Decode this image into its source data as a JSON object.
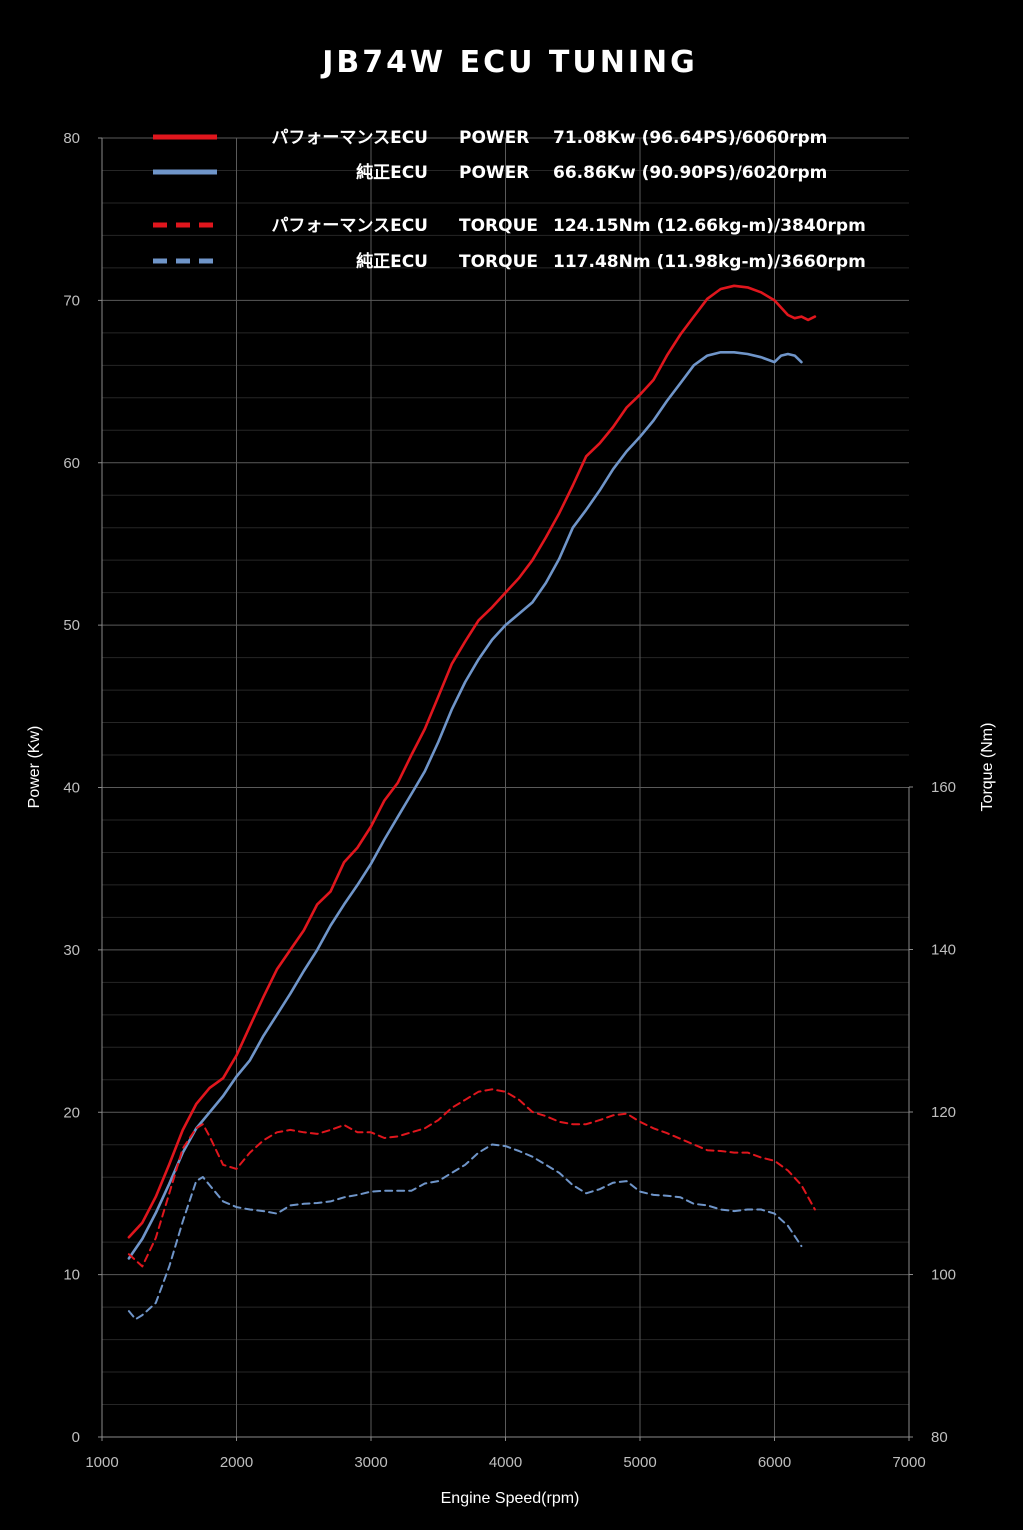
{
  "chart_data": {
    "type": "line",
    "title": "JB74W ECU TUNING",
    "xlabel": "Engine Speed(rpm)",
    "ylabel": "Power (Kw)",
    "y2label": "Torque (Nm)",
    "xlim": [
      1000,
      7000
    ],
    "ylim": [
      0,
      80
    ],
    "y2lim": [
      80,
      160
    ],
    "xticks": [
      "1000",
      "2000",
      "3000",
      "4000",
      "5000",
      "6000",
      "7000"
    ],
    "yticks": [
      "0",
      "10",
      "20",
      "30",
      "40",
      "50",
      "60",
      "70",
      "80"
    ],
    "y2ticks": [
      "80",
      "100",
      "120",
      "140",
      "160"
    ],
    "grid": true,
    "legend_position": "top",
    "series": [
      {
        "name": "パフォーマンスECU",
        "legend_metric": "POWER",
        "legend_value": "71.08Kw (96.64PS)/6060rpm",
        "axis": "left",
        "style": "solid",
        "color": "#e0161d",
        "x": [
          1200,
          1300,
          1400,
          1500,
          1600,
          1700,
          1800,
          1900,
          2000,
          2100,
          2200,
          2300,
          2400,
          2500,
          2600,
          2700,
          2800,
          2900,
          3000,
          3100,
          3200,
          3300,
          3400,
          3500,
          3600,
          3700,
          3800,
          3900,
          4000,
          4100,
          4200,
          4300,
          4400,
          4500,
          4600,
          4700,
          4800,
          4900,
          5000,
          5100,
          5200,
          5300,
          5400,
          5500,
          5600,
          5700,
          5800,
          5900,
          6000,
          6100,
          6150,
          6200,
          6250,
          6300
        ],
        "y": [
          12.3,
          13.2,
          14.8,
          16.8,
          18.9,
          20.5,
          21.5,
          22.1,
          23.5,
          25.3,
          27.1,
          28.8,
          30.0,
          31.2,
          32.8,
          33.6,
          35.4,
          36.3,
          37.6,
          39.2,
          40.3,
          42.0,
          43.6,
          45.6,
          47.6,
          49.0,
          50.3,
          51.1,
          52.0,
          52.9,
          54.0,
          55.4,
          56.9,
          58.6,
          60.4,
          61.2,
          62.2,
          63.4,
          64.2,
          65.1,
          66.6,
          67.9,
          69.0,
          70.1,
          70.7,
          70.9,
          70.8,
          70.5,
          70.0,
          69.1,
          68.9,
          69.0,
          68.8,
          69.0
        ],
        "x_note": ""
      },
      {
        "name": "純正ECU",
        "legend_metric": "POWER",
        "legend_value": "66.86Kw (90.90PS)/6020rpm",
        "axis": "left",
        "style": "solid",
        "color": "#6f95c9",
        "x": [
          1200,
          1300,
          1400,
          1500,
          1600,
          1700,
          1800,
          1900,
          2000,
          2100,
          2200,
          2300,
          2400,
          2500,
          2600,
          2700,
          2800,
          2900,
          3000,
          3100,
          3200,
          3300,
          3400,
          3500,
          3600,
          3700,
          3800,
          3900,
          4000,
          4100,
          4200,
          4300,
          4400,
          4500,
          4600,
          4700,
          4800,
          4900,
          5000,
          5100,
          5200,
          5300,
          5400,
          5500,
          5600,
          5700,
          5800,
          5900,
          6000,
          6050,
          6100,
          6150,
          6200
        ],
        "y": [
          11.0,
          12.2,
          13.8,
          15.6,
          17.5,
          19.0,
          20.0,
          21.0,
          22.2,
          23.2,
          24.7,
          26.0,
          27.3,
          28.7,
          30.0,
          31.5,
          32.8,
          34.0,
          35.3,
          36.8,
          38.2,
          39.6,
          41.0,
          42.8,
          44.8,
          46.5,
          47.9,
          49.1,
          50.0,
          50.7,
          51.4,
          52.6,
          54.1,
          56.0,
          57.1,
          58.3,
          59.6,
          60.7,
          61.6,
          62.6,
          63.8,
          64.9,
          66.0,
          66.6,
          66.8,
          66.8,
          66.7,
          66.5,
          66.2,
          66.6,
          66.7,
          66.6,
          66.2
        ],
        "x_note": ""
      },
      {
        "name": "パフォーマンスECU",
        "legend_metric": "TORQUE",
        "legend_value": "124.15Nm (12.66kg-m)/3840rpm",
        "axis": "right",
        "style": "dashed",
        "color": "#e0161d",
        "x": [
          1200,
          1300,
          1400,
          1500,
          1600,
          1700,
          1750,
          1800,
          1900,
          2000,
          2100,
          2200,
          2300,
          2400,
          2500,
          2600,
          2700,
          2800,
          2900,
          3000,
          3100,
          3200,
          3300,
          3400,
          3500,
          3600,
          3700,
          3800,
          3900,
          4000,
          4100,
          4200,
          4300,
          4400,
          4500,
          4600,
          4700,
          4800,
          4900,
          5000,
          5100,
          5200,
          5300,
          5400,
          5500,
          5600,
          5700,
          5800,
          5900,
          6000,
          6100,
          6200,
          6300
        ],
        "y": [
          102.5,
          101.0,
          104.5,
          110.0,
          115.5,
          118.0,
          118.5,
          117.0,
          113.5,
          113.0,
          115.0,
          116.5,
          117.5,
          117.8,
          117.5,
          117.3,
          117.8,
          118.4,
          117.5,
          117.5,
          116.8,
          117.0,
          117.5,
          118.0,
          119.0,
          120.5,
          121.5,
          122.5,
          122.8,
          122.5,
          121.5,
          120.0,
          119.5,
          118.8,
          118.5,
          118.5,
          119.0,
          119.6,
          119.8,
          118.8,
          118.0,
          117.4,
          116.7,
          116.0,
          115.3,
          115.2,
          115.0,
          115.0,
          114.4,
          114.0,
          112.8,
          111.0,
          108.0
        ],
        "x_note": ""
      },
      {
        "name": "純正ECU",
        "legend_metric": "TORQUE",
        "legend_value": "117.48Nm (11.98kg-m)/3660rpm",
        "axis": "right",
        "style": "dashed",
        "color": "#6f95c9",
        "x": [
          1200,
          1250,
          1300,
          1400,
          1500,
          1600,
          1700,
          1750,
          1800,
          1900,
          2000,
          2100,
          2200,
          2300,
          2400,
          2500,
          2600,
          2700,
          2800,
          2900,
          3000,
          3100,
          3200,
          3300,
          3400,
          3500,
          3600,
          3700,
          3800,
          3900,
          4000,
          4100,
          4200,
          4300,
          4400,
          4500,
          4600,
          4700,
          4800,
          4900,
          5000,
          5100,
          5200,
          5300,
          5400,
          5500,
          5600,
          5700,
          5800,
          5900,
          6000,
          6100,
          6200
        ],
        "y": [
          95.5,
          94.5,
          95.0,
          96.5,
          101.0,
          106.5,
          111.5,
          112.0,
          111.0,
          109.0,
          108.3,
          108.0,
          107.8,
          107.5,
          108.5,
          108.7,
          108.8,
          109.0,
          109.5,
          109.8,
          110.2,
          110.3,
          110.3,
          110.3,
          111.2,
          111.5,
          112.5,
          113.5,
          115.0,
          116.0,
          115.8,
          115.2,
          114.5,
          113.5,
          112.5,
          111.0,
          110.0,
          110.5,
          111.3,
          111.5,
          110.2,
          109.8,
          109.7,
          109.5,
          108.7,
          108.5,
          108.0,
          107.8,
          108.0,
          108.0,
          107.5,
          106.0,
          103.5
        ],
        "x_note": ""
      }
    ]
  }
}
